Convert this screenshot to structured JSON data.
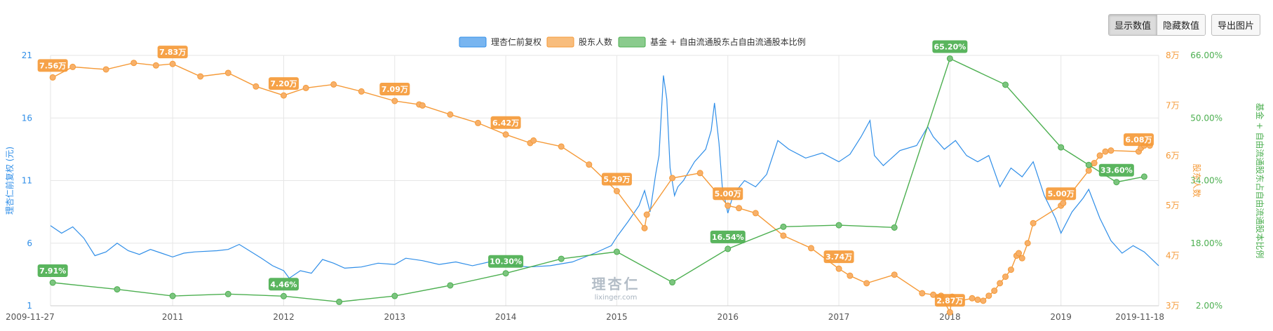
{
  "toolbar": {
    "show_values": "显示数值",
    "hide_values": "隐藏数值",
    "export_image": "导出图片"
  },
  "watermark": {
    "logo": "理杏仁",
    "url": "lixinger.com"
  },
  "colors": {
    "price": "#2f8ee8",
    "holders": "#f59a38",
    "ratio": "#4caf50",
    "grid": "#e6e6e6"
  },
  "chart_data": {
    "type": "line",
    "legend_position": "top-center",
    "grid": true,
    "x_ticks": [
      "2009-11-27",
      "2011",
      "2012",
      "2013",
      "2014",
      "2015",
      "2016",
      "2017",
      "2018",
      "2019",
      "2019-11-18"
    ],
    "x_range": [
      2009.9,
      2019.88
    ],
    "axes": {
      "left": {
        "label": "理杏仁前复权 (元)",
        "range": [
          1,
          21
        ],
        "ticks": [
          "1",
          "6",
          "11",
          "16",
          "21"
        ]
      },
      "right1": {
        "label": "股东人数",
        "range": [
          3,
          8
        ],
        "ticks": [
          "3万",
          "4万",
          "5万",
          "6万",
          "7万",
          "8万"
        ]
      },
      "right2": {
        "label": "基金 + 自由流通股东占自由流通股本比例",
        "range": [
          2,
          66
        ],
        "ticks": [
          "2.00%",
          "18.00%",
          "34.00%",
          "50.00%",
          "66.00%"
        ]
      }
    },
    "series": [
      {
        "name": "理杏仁前复权",
        "axis": "left",
        "x": [
          2009.9,
          2010.0,
          2010.1,
          2010.2,
          2010.3,
          2010.4,
          2010.5,
          2010.6,
          2010.7,
          2010.8,
          2010.9,
          2011.0,
          2011.1,
          2011.2,
          2011.4,
          2011.5,
          2011.6,
          2011.8,
          2011.9,
          2012.0,
          2012.05,
          2012.15,
          2012.25,
          2012.35,
          2012.45,
          2012.55,
          2012.7,
          2012.85,
          2013.0,
          2013.1,
          2013.25,
          2013.4,
          2013.55,
          2013.7,
          2013.85,
          2014.0,
          2014.2,
          2014.4,
          2014.6,
          2014.8,
          2014.95,
          2015.0,
          2015.1,
          2015.2,
          2015.25,
          2015.3,
          2015.35,
          2015.38,
          2015.42,
          2015.45,
          2015.48,
          2015.52,
          2015.55,
          2015.6,
          2015.7,
          2015.8,
          2015.85,
          2015.88,
          2015.92,
          2015.95,
          2016.0,
          2016.05,
          2016.15,
          2016.25,
          2016.35,
          2016.45,
          2016.55,
          2016.7,
          2016.85,
          2017.0,
          2017.1,
          2017.2,
          2017.28,
          2017.32,
          2017.4,
          2017.55,
          2017.7,
          2017.8,
          2017.85,
          2017.95,
          2018.05,
          2018.15,
          2018.25,
          2018.35,
          2018.45,
          2018.55,
          2018.65,
          2018.75,
          2018.85,
          2018.95,
          2019.0,
          2019.1,
          2019.2,
          2019.25,
          2019.35,
          2019.45,
          2019.55,
          2019.65,
          2019.75,
          2019.88
        ],
        "values": [
          7.4,
          6.8,
          7.3,
          6.4,
          5.0,
          5.3,
          6.0,
          5.4,
          5.1,
          5.5,
          5.2,
          4.9,
          5.2,
          5.3,
          5.4,
          5.5,
          5.9,
          4.8,
          4.2,
          3.8,
          3.2,
          3.8,
          3.6,
          4.7,
          4.4,
          4.0,
          4.1,
          4.4,
          4.3,
          4.8,
          4.6,
          4.3,
          4.5,
          4.2,
          4.5,
          4.3,
          4.1,
          4.2,
          4.5,
          5.2,
          5.8,
          6.5,
          7.7,
          9.0,
          10.2,
          8.5,
          11.5,
          13.0,
          19.4,
          17.5,
          12.0,
          9.8,
          10.5,
          11.0,
          12.5,
          13.5,
          15.0,
          17.2,
          14.0,
          10.5,
          8.4,
          9.9,
          11.0,
          10.5,
          11.5,
          14.2,
          13.5,
          12.8,
          13.2,
          12.5,
          13.1,
          14.5,
          15.8,
          13.0,
          12.2,
          13.4,
          13.8,
          15.3,
          14.5,
          13.5,
          14.2,
          13.0,
          12.5,
          13.0,
          10.5,
          12.0,
          11.3,
          12.5,
          9.8,
          8.0,
          6.8,
          8.5,
          9.6,
          10.3,
          8.0,
          6.2,
          5.2,
          5.8,
          5.3,
          4.2
        ]
      },
      {
        "name": "股东人数",
        "axis": "right1",
        "x": [
          2009.92,
          2010.1,
          2010.4,
          2010.65,
          2010.85,
          2011.0,
          2011.25,
          2011.5,
          2011.75,
          2012.0,
          2012.2,
          2012.45,
          2012.7,
          2013.0,
          2013.22,
          2013.25,
          2013.5,
          2013.75,
          2014.0,
          2014.22,
          2014.25,
          2014.5,
          2014.75,
          2015.0,
          2015.25,
          2015.27,
          2015.5,
          2015.75,
          2016.0,
          2016.1,
          2016.25,
          2016.5,
          2016.75,
          2017.0,
          2017.1,
          2017.25,
          2017.5,
          2017.75,
          2017.85,
          2017.92,
          2018.0,
          2018.02,
          2018.1,
          2018.2,
          2018.25,
          2018.3,
          2018.35,
          2018.4,
          2018.45,
          2018.5,
          2018.55,
          2018.6,
          2018.62,
          2018.65,
          2018.7,
          2018.75,
          2019.0,
          2019.02,
          2019.25,
          2019.3,
          2019.35,
          2019.4,
          2019.45,
          2019.7,
          2019.72,
          2019.75,
          2019.8
        ],
        "values": [
          7.56,
          7.77,
          7.72,
          7.85,
          7.8,
          7.83,
          7.58,
          7.65,
          7.38,
          7.2,
          7.35,
          7.42,
          7.28,
          7.09,
          7.02,
          7.0,
          6.82,
          6.65,
          6.42,
          6.25,
          6.3,
          6.18,
          5.82,
          5.29,
          4.55,
          4.82,
          5.55,
          5.65,
          5.0,
          4.95,
          4.85,
          4.4,
          4.15,
          3.74,
          3.6,
          3.45,
          3.62,
          3.25,
          3.22,
          3.2,
          2.87,
          3.18,
          3.1,
          3.15,
          3.12,
          3.1,
          3.2,
          3.3,
          3.45,
          3.58,
          3.72,
          4.0,
          4.05,
          3.95,
          4.25,
          4.65,
          5.0,
          5.05,
          5.7,
          5.85,
          6.0,
          6.08,
          6.1,
          6.08,
          6.15,
          6.2,
          6.2
        ]
      },
      {
        "name": "基金 + 自由流通股东占自由流通股本比例",
        "axis": "right2",
        "x": [
          2009.92,
          2010.5,
          2011.0,
          2011.5,
          2012.0,
          2012.5,
          2013.0,
          2013.5,
          2014.0,
          2014.5,
          2015.0,
          2015.5,
          2016.0,
          2016.5,
          2017.0,
          2017.5,
          2018.0,
          2018.5,
          2019.0,
          2019.25,
          2019.5,
          2019.75
        ],
        "values": [
          7.91,
          6.2,
          4.5,
          5.0,
          4.46,
          3.0,
          4.5,
          7.2,
          10.3,
          14.0,
          15.8,
          8.0,
          16.54,
          22.2,
          22.6,
          22.0,
          65.2,
          58.5,
          42.5,
          38.0,
          33.6,
          35.0
        ]
      }
    ],
    "annotations": [
      {
        "series": "股东人数",
        "x": 2009.92,
        "value": 7.56,
        "text": "7.56万"
      },
      {
        "series": "股东人数",
        "x": 2011.0,
        "value": 7.83,
        "text": "7.83万"
      },
      {
        "series": "股东人数",
        "x": 2012.0,
        "value": 7.2,
        "text": "7.20万"
      },
      {
        "series": "股东人数",
        "x": 2013.0,
        "value": 7.09,
        "text": "7.09万"
      },
      {
        "series": "股东人数",
        "x": 2014.0,
        "value": 6.42,
        "text": "6.42万"
      },
      {
        "series": "股东人数",
        "x": 2015.0,
        "value": 5.29,
        "text": "5.29万"
      },
      {
        "series": "股东人数",
        "x": 2016.0,
        "value": 5.0,
        "text": "5.00万"
      },
      {
        "series": "股东人数",
        "x": 2017.0,
        "value": 3.74,
        "text": "3.74万"
      },
      {
        "series": "股东人数",
        "x": 2018.0,
        "value": 2.87,
        "text": "2.87万"
      },
      {
        "series": "股东人数",
        "x": 2019.0,
        "value": 5.0,
        "text": "5.00万"
      },
      {
        "series": "股东人数",
        "x": 2019.7,
        "value": 6.08,
        "text": "6.08万"
      },
      {
        "series": "基金 + 自由流通股东占自由流通股本比例",
        "x": 2009.92,
        "value": 7.91,
        "text": "7.91%"
      },
      {
        "series": "基金 + 自由流通股东占自由流通股本比例",
        "x": 2012.0,
        "value": 4.46,
        "text": "4.46%"
      },
      {
        "series": "基金 + 自由流通股东占自由流通股本比例",
        "x": 2014.0,
        "value": 10.3,
        "text": "10.30%"
      },
      {
        "series": "基金 + 自由流通股东占自由流通股本比例",
        "x": 2016.0,
        "value": 16.54,
        "text": "16.54%"
      },
      {
        "series": "基金 + 自由流通股东占自由流通股本比例",
        "x": 2018.0,
        "value": 65.2,
        "text": "65.20%"
      },
      {
        "series": "基金 + 自由流通股东占自由流通股本比例",
        "x": 2019.5,
        "value": 33.6,
        "text": "33.60%"
      }
    ]
  }
}
